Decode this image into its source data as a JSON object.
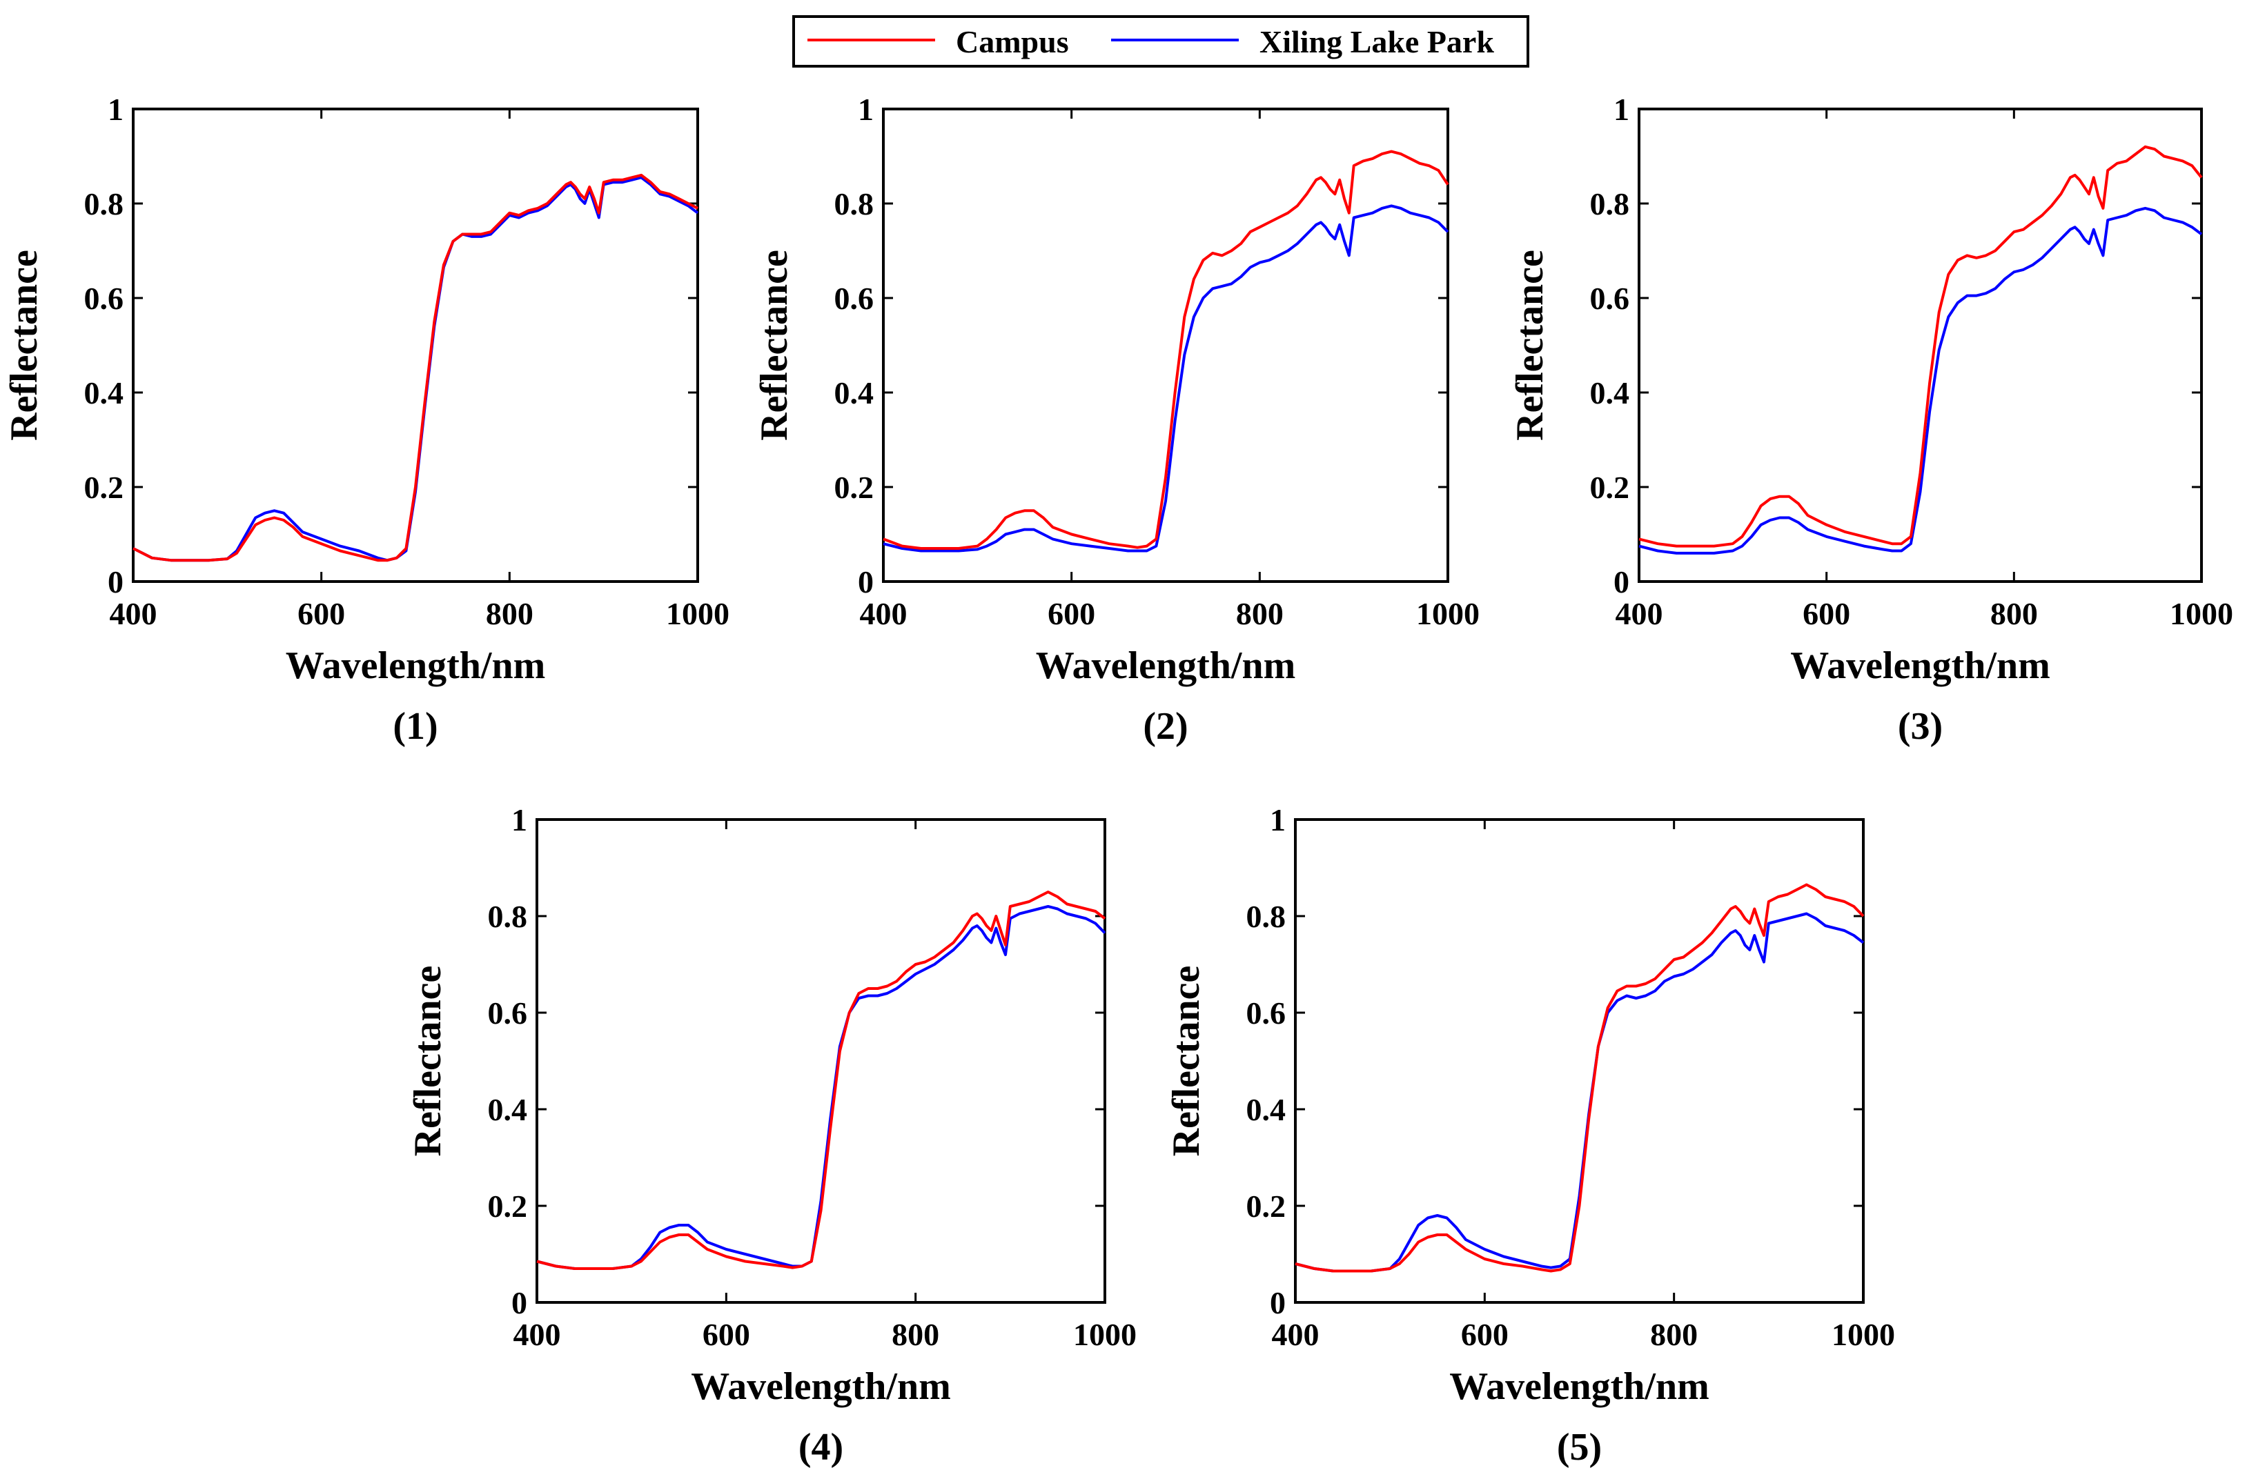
{
  "legend": {
    "entries": [
      {
        "label": "Campus",
        "color": "#ff0000"
      },
      {
        "label": "Xiling Lake Park",
        "color": "#0000ff"
      }
    ]
  },
  "chart_data": [
    {
      "type": "line",
      "panel_label": "(1)",
      "xlabel": "Wavelength/nm",
      "ylabel": "Reflectance",
      "xlim": [
        400,
        1000
      ],
      "ylim": [
        0,
        1
      ],
      "xticks": [
        "400",
        "600",
        "800",
        "1000"
      ],
      "yticks": [
        "0",
        "0.2",
        "0.4",
        "0.6",
        "0.8",
        "1"
      ],
      "x": [
        400,
        420,
        440,
        460,
        480,
        500,
        510,
        520,
        530,
        540,
        550,
        560,
        570,
        580,
        600,
        620,
        640,
        660,
        670,
        680,
        690,
        700,
        710,
        720,
        730,
        740,
        750,
        760,
        770,
        780,
        790,
        800,
        810,
        820,
        830,
        840,
        850,
        860,
        865,
        870,
        875,
        880,
        885,
        890,
        895,
        900,
        910,
        920,
        930,
        940,
        950,
        960,
        970,
        980,
        990,
        1000
      ],
      "series": [
        {
          "name": "Campus",
          "values": [
            0.07,
            0.05,
            0.045,
            0.045,
            0.045,
            0.048,
            0.06,
            0.09,
            0.12,
            0.13,
            0.135,
            0.13,
            0.115,
            0.095,
            0.08,
            0.065,
            0.055,
            0.045,
            0.045,
            0.05,
            0.07,
            0.2,
            0.38,
            0.55,
            0.67,
            0.72,
            0.735,
            0.735,
            0.735,
            0.74,
            0.76,
            0.78,
            0.775,
            0.785,
            0.79,
            0.8,
            0.82,
            0.84,
            0.845,
            0.835,
            0.82,
            0.81,
            0.835,
            0.81,
            0.78,
            0.845,
            0.85,
            0.85,
            0.855,
            0.86,
            0.845,
            0.825,
            0.82,
            0.81,
            0.8,
            0.79
          ]
        },
        {
          "name": "Xiling Lake Park",
          "values": [
            0.07,
            0.05,
            0.045,
            0.045,
            0.045,
            0.048,
            0.065,
            0.1,
            0.135,
            0.145,
            0.15,
            0.145,
            0.125,
            0.105,
            0.09,
            0.075,
            0.065,
            0.05,
            0.045,
            0.05,
            0.065,
            0.19,
            0.37,
            0.54,
            0.665,
            0.72,
            0.735,
            0.73,
            0.73,
            0.735,
            0.755,
            0.775,
            0.77,
            0.78,
            0.785,
            0.795,
            0.815,
            0.835,
            0.84,
            0.83,
            0.81,
            0.8,
            0.83,
            0.8,
            0.77,
            0.84,
            0.845,
            0.845,
            0.85,
            0.855,
            0.84,
            0.82,
            0.815,
            0.805,
            0.795,
            0.78
          ]
        }
      ]
    },
    {
      "type": "line",
      "panel_label": "(2)",
      "xlabel": "Wavelength/nm",
      "ylabel": "Reflectance",
      "xlim": [
        400,
        1000
      ],
      "ylim": [
        0,
        1
      ],
      "xticks": [
        "400",
        "600",
        "800",
        "1000"
      ],
      "yticks": [
        "0",
        "0.2",
        "0.4",
        "0.6",
        "0.8",
        "1"
      ],
      "x": [
        400,
        420,
        440,
        460,
        480,
        500,
        510,
        520,
        530,
        540,
        550,
        560,
        570,
        580,
        600,
        620,
        640,
        660,
        670,
        680,
        690,
        700,
        710,
        720,
        730,
        740,
        750,
        760,
        770,
        780,
        790,
        800,
        810,
        820,
        830,
        840,
        850,
        860,
        865,
        870,
        875,
        880,
        885,
        890,
        895,
        900,
        910,
        920,
        930,
        940,
        950,
        960,
        970,
        980,
        990,
        1000
      ],
      "series": [
        {
          "name": "Campus",
          "values": [
            0.09,
            0.075,
            0.07,
            0.07,
            0.07,
            0.075,
            0.09,
            0.11,
            0.135,
            0.145,
            0.15,
            0.15,
            0.135,
            0.115,
            0.1,
            0.09,
            0.08,
            0.075,
            0.072,
            0.075,
            0.09,
            0.22,
            0.4,
            0.56,
            0.64,
            0.68,
            0.695,
            0.69,
            0.7,
            0.715,
            0.74,
            0.75,
            0.76,
            0.77,
            0.78,
            0.795,
            0.82,
            0.85,
            0.855,
            0.845,
            0.83,
            0.82,
            0.85,
            0.81,
            0.78,
            0.88,
            0.89,
            0.895,
            0.905,
            0.91,
            0.905,
            0.895,
            0.885,
            0.88,
            0.87,
            0.84
          ]
        },
        {
          "name": "Xiling Lake Park",
          "values": [
            0.08,
            0.07,
            0.065,
            0.065,
            0.065,
            0.068,
            0.075,
            0.085,
            0.1,
            0.105,
            0.11,
            0.11,
            0.1,
            0.09,
            0.08,
            0.075,
            0.07,
            0.065,
            0.065,
            0.065,
            0.075,
            0.17,
            0.34,
            0.48,
            0.56,
            0.6,
            0.62,
            0.625,
            0.63,
            0.645,
            0.665,
            0.675,
            0.68,
            0.69,
            0.7,
            0.715,
            0.735,
            0.755,
            0.76,
            0.75,
            0.735,
            0.725,
            0.755,
            0.72,
            0.69,
            0.77,
            0.775,
            0.78,
            0.79,
            0.795,
            0.79,
            0.78,
            0.775,
            0.77,
            0.76,
            0.74
          ]
        }
      ]
    },
    {
      "type": "line",
      "panel_label": "(3)",
      "xlabel": "Wavelength/nm",
      "ylabel": "Reflectance",
      "xlim": [
        400,
        1000
      ],
      "ylim": [
        0,
        1
      ],
      "xticks": [
        "400",
        "600",
        "800",
        "1000"
      ],
      "yticks": [
        "0",
        "0.2",
        "0.4",
        "0.6",
        "0.8",
        "1"
      ],
      "x": [
        400,
        420,
        440,
        460,
        480,
        500,
        510,
        520,
        530,
        540,
        550,
        560,
        570,
        580,
        600,
        620,
        640,
        660,
        670,
        680,
        690,
        700,
        710,
        720,
        730,
        740,
        750,
        760,
        770,
        780,
        790,
        800,
        810,
        820,
        830,
        840,
        850,
        860,
        865,
        870,
        875,
        880,
        885,
        890,
        895,
        900,
        910,
        920,
        930,
        940,
        950,
        960,
        970,
        980,
        990,
        1000
      ],
      "series": [
        {
          "name": "Campus",
          "values": [
            0.09,
            0.08,
            0.075,
            0.075,
            0.075,
            0.08,
            0.095,
            0.125,
            0.16,
            0.175,
            0.18,
            0.18,
            0.165,
            0.14,
            0.12,
            0.105,
            0.095,
            0.085,
            0.08,
            0.08,
            0.095,
            0.23,
            0.42,
            0.57,
            0.65,
            0.68,
            0.69,
            0.685,
            0.69,
            0.7,
            0.72,
            0.74,
            0.745,
            0.76,
            0.775,
            0.795,
            0.82,
            0.855,
            0.86,
            0.85,
            0.835,
            0.82,
            0.855,
            0.815,
            0.79,
            0.87,
            0.885,
            0.89,
            0.905,
            0.92,
            0.915,
            0.9,
            0.895,
            0.89,
            0.88,
            0.855
          ]
        },
        {
          "name": "Xiling Lake Park",
          "values": [
            0.075,
            0.065,
            0.06,
            0.06,
            0.06,
            0.065,
            0.075,
            0.095,
            0.12,
            0.13,
            0.135,
            0.135,
            0.125,
            0.11,
            0.095,
            0.085,
            0.075,
            0.068,
            0.065,
            0.065,
            0.08,
            0.19,
            0.36,
            0.49,
            0.56,
            0.59,
            0.605,
            0.605,
            0.61,
            0.62,
            0.64,
            0.655,
            0.66,
            0.67,
            0.685,
            0.705,
            0.725,
            0.745,
            0.75,
            0.74,
            0.725,
            0.715,
            0.745,
            0.715,
            0.69,
            0.765,
            0.77,
            0.775,
            0.785,
            0.79,
            0.785,
            0.77,
            0.765,
            0.76,
            0.75,
            0.735
          ]
        }
      ]
    },
    {
      "type": "line",
      "panel_label": "(4)",
      "xlabel": "Wavelength/nm",
      "ylabel": "Reflectance",
      "xlim": [
        400,
        1000
      ],
      "ylim": [
        0,
        1
      ],
      "xticks": [
        "400",
        "600",
        "800",
        "1000"
      ],
      "yticks": [
        "0",
        "0.2",
        "0.4",
        "0.6",
        "0.8",
        "1"
      ],
      "x": [
        400,
        420,
        440,
        460,
        480,
        500,
        510,
        520,
        530,
        540,
        550,
        560,
        570,
        580,
        600,
        620,
        640,
        660,
        670,
        680,
        690,
        700,
        710,
        720,
        730,
        740,
        750,
        760,
        770,
        780,
        790,
        800,
        810,
        820,
        830,
        840,
        850,
        860,
        865,
        870,
        875,
        880,
        885,
        890,
        895,
        900,
        910,
        920,
        930,
        940,
        950,
        960,
        970,
        980,
        990,
        1000
      ],
      "series": [
        {
          "name": "Campus",
          "values": [
            0.085,
            0.075,
            0.07,
            0.07,
            0.07,
            0.075,
            0.085,
            0.105,
            0.125,
            0.135,
            0.14,
            0.14,
            0.125,
            0.11,
            0.095,
            0.085,
            0.08,
            0.075,
            0.072,
            0.075,
            0.085,
            0.19,
            0.36,
            0.52,
            0.6,
            0.64,
            0.65,
            0.65,
            0.655,
            0.665,
            0.685,
            0.7,
            0.705,
            0.715,
            0.73,
            0.745,
            0.77,
            0.8,
            0.805,
            0.795,
            0.78,
            0.77,
            0.8,
            0.77,
            0.74,
            0.82,
            0.825,
            0.83,
            0.84,
            0.85,
            0.84,
            0.825,
            0.82,
            0.815,
            0.81,
            0.795
          ]
        },
        {
          "name": "Xiling Lake Park",
          "values": [
            0.085,
            0.075,
            0.07,
            0.07,
            0.07,
            0.075,
            0.09,
            0.115,
            0.145,
            0.155,
            0.16,
            0.16,
            0.145,
            0.125,
            0.11,
            0.1,
            0.09,
            0.08,
            0.075,
            0.075,
            0.085,
            0.21,
            0.38,
            0.53,
            0.6,
            0.63,
            0.635,
            0.635,
            0.64,
            0.65,
            0.665,
            0.68,
            0.69,
            0.7,
            0.715,
            0.73,
            0.75,
            0.775,
            0.78,
            0.77,
            0.755,
            0.745,
            0.775,
            0.745,
            0.72,
            0.795,
            0.805,
            0.81,
            0.815,
            0.82,
            0.815,
            0.805,
            0.8,
            0.795,
            0.785,
            0.765
          ]
        }
      ]
    },
    {
      "type": "line",
      "panel_label": "(5)",
      "xlabel": "Wavelength/nm",
      "ylabel": "Reflectance",
      "xlim": [
        400,
        1000
      ],
      "ylim": [
        0,
        1
      ],
      "xticks": [
        "400",
        "600",
        "800",
        "1000"
      ],
      "yticks": [
        "0",
        "0.2",
        "0.4",
        "0.6",
        "0.8",
        "1"
      ],
      "x": [
        400,
        420,
        440,
        460,
        480,
        500,
        510,
        520,
        530,
        540,
        550,
        560,
        570,
        580,
        600,
        620,
        640,
        660,
        670,
        680,
        690,
        700,
        710,
        720,
        730,
        740,
        750,
        760,
        770,
        780,
        790,
        800,
        810,
        820,
        830,
        840,
        850,
        860,
        865,
        870,
        875,
        880,
        885,
        890,
        895,
        900,
        910,
        920,
        930,
        940,
        950,
        960,
        970,
        980,
        990,
        1000
      ],
      "series": [
        {
          "name": "Campus",
          "values": [
            0.08,
            0.07,
            0.065,
            0.065,
            0.065,
            0.07,
            0.08,
            0.1,
            0.125,
            0.135,
            0.14,
            0.14,
            0.125,
            0.11,
            0.09,
            0.08,
            0.075,
            0.068,
            0.065,
            0.068,
            0.08,
            0.2,
            0.38,
            0.53,
            0.61,
            0.645,
            0.655,
            0.655,
            0.66,
            0.67,
            0.69,
            0.71,
            0.715,
            0.73,
            0.745,
            0.765,
            0.79,
            0.815,
            0.82,
            0.81,
            0.795,
            0.785,
            0.815,
            0.785,
            0.76,
            0.83,
            0.84,
            0.845,
            0.855,
            0.865,
            0.855,
            0.84,
            0.835,
            0.83,
            0.82,
            0.8
          ]
        },
        {
          "name": "Xiling Lake Park",
          "values": [
            0.08,
            0.07,
            0.065,
            0.065,
            0.065,
            0.07,
            0.09,
            0.125,
            0.16,
            0.175,
            0.18,
            0.175,
            0.155,
            0.13,
            0.11,
            0.095,
            0.085,
            0.075,
            0.072,
            0.075,
            0.09,
            0.22,
            0.39,
            0.53,
            0.6,
            0.625,
            0.635,
            0.63,
            0.635,
            0.645,
            0.665,
            0.675,
            0.68,
            0.69,
            0.705,
            0.72,
            0.745,
            0.765,
            0.77,
            0.76,
            0.74,
            0.73,
            0.76,
            0.73,
            0.705,
            0.785,
            0.79,
            0.795,
            0.8,
            0.805,
            0.795,
            0.78,
            0.775,
            0.77,
            0.76,
            0.745
          ]
        }
      ]
    }
  ]
}
